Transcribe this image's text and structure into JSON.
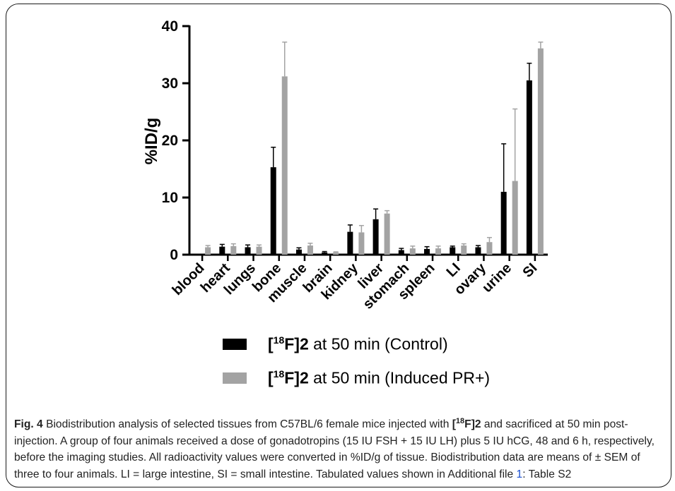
{
  "chart_data": {
    "type": "bar",
    "ylabel": "%ID/g",
    "ylim": [
      0,
      40
    ],
    "yticks": [
      0,
      10,
      20,
      30,
      40
    ],
    "categories": [
      "blood",
      "heart",
      "lungs",
      "bone",
      "muscle",
      "brain",
      "kidney",
      "liver",
      "stomach",
      "spleen",
      "LI",
      "ovary",
      "urine",
      "SI"
    ],
    "series": [
      {
        "name_pre": "[",
        "name_sup": "18",
        "name_bold": "F]2",
        "name_post": " at 50 min (Control)",
        "color": "#000000",
        "values": [
          0.0,
          1.4,
          1.3,
          15.3,
          0.9,
          0.4,
          4.0,
          6.2,
          0.8,
          1.0,
          1.3,
          1.3,
          11.0,
          30.5
        ],
        "errors": [
          0.0,
          0.4,
          0.4,
          3.5,
          0.3,
          0.15,
          1.2,
          1.8,
          0.3,
          0.4,
          0.2,
          0.3,
          8.4,
          3.0
        ]
      },
      {
        "name_pre": "[",
        "name_sup": "18",
        "name_bold": "F]2",
        "name_post": " at 50 min (Induced PR+)",
        "color": "#a3a3a3",
        "values": [
          1.3,
          1.5,
          1.4,
          31.2,
          1.6,
          0.4,
          3.9,
          7.2,
          1.1,
          1.1,
          1.6,
          2.2,
          12.9,
          36.1
        ],
        "errors": [
          0.3,
          0.4,
          0.3,
          6.0,
          0.4,
          0.1,
          1.2,
          0.5,
          0.4,
          0.4,
          0.3,
          0.8,
          12.6,
          1.1
        ]
      }
    ]
  },
  "caption": {
    "label": "Fig. 4",
    "text_1": " Biodistribution analysis of selected tissues from C57BL/6 female mice injected with ",
    "compound_pre": "[",
    "compound_sup": "18",
    "compound_post": "F]2",
    "text_2": " and sacrificed at 50 min post-injection. A group of four animals received a dose of gonadotropins (15 IU FSH + 15 IU LH) plus 5 IU hCG, 48 and 6 h, respectively, before the imaging studies. All radioactivity values were converted in %ID/g of tissue. Biodistribution data are means of ± SEM of three to four animals. LI = large intestine, SI = small intestine. Tabulated values shown in Additional file ",
    "link": "1",
    "text_3": ": Table S2"
  }
}
